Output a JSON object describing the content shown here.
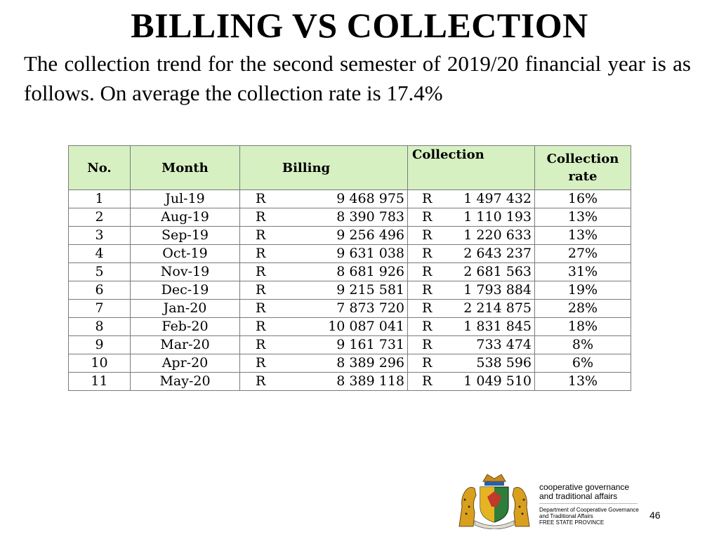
{
  "title": "BILLING VS COLLECTION",
  "intro": "The collection trend for the second semester of 2019/20 financial year is as follows. On average the collection rate is 17.4%",
  "table": {
    "headers": {
      "no": "No.",
      "month": "Month",
      "billing": "Billing",
      "collection": "Collection",
      "rate_line1": "Collection",
      "rate_line2": "rate"
    },
    "currency": "R",
    "rows": [
      {
        "no": "1",
        "month": "Jul-19",
        "billing": "9 468 975",
        "collection": "1 497 432",
        "rate": "16%"
      },
      {
        "no": "2",
        "month": "Aug-19",
        "billing": "8 390 783",
        "collection": "1 110 193",
        "rate": "13%"
      },
      {
        "no": "3",
        "month": "Sep-19",
        "billing": "9 256 496",
        "collection": "1 220 633",
        "rate": "13%"
      },
      {
        "no": "4",
        "month": "Oct-19",
        "billing": "9 631 038",
        "collection": "2 643 237",
        "rate": "27%"
      },
      {
        "no": "5",
        "month": "Nov-19",
        "billing": "8 681 926",
        "collection": "2 681 563",
        "rate": "31%"
      },
      {
        "no": "6",
        "month": "Dec-19",
        "billing": "9 215 581",
        "collection": "1 793 884",
        "rate": "19%"
      },
      {
        "no": "7",
        "month": "Jan-20",
        "billing": "7 873 720",
        "collection": "2 214 875",
        "rate": "28%"
      },
      {
        "no": "8",
        "month": "Feb-20",
        "billing": "10 087 041",
        "collection": "1 831 845",
        "rate": "18%"
      },
      {
        "no": "9",
        "month": "Mar-20",
        "billing": "9 161 731",
        "collection": "733 474",
        "rate": "8%"
      },
      {
        "no": "10",
        "month": "Apr-20",
        "billing": "8 389 296",
        "collection": "538 596",
        "rate": "6%"
      },
      {
        "no": "11",
        "month": "May-20",
        "billing": "8 389 118",
        "collection": "1 049 510",
        "rate": "13%"
      }
    ]
  },
  "footer": {
    "org_line1": "cooperative governance",
    "org_line2": "and traditional affairs",
    "dept_line1": "Department of Cooperative Governance",
    "dept_line2": "and Traditional Affairs",
    "dept_line3": "FREE STATE PROVINCE",
    "page_number": "46",
    "logo_icon": "free-state-coat-of-arms-icon"
  }
}
